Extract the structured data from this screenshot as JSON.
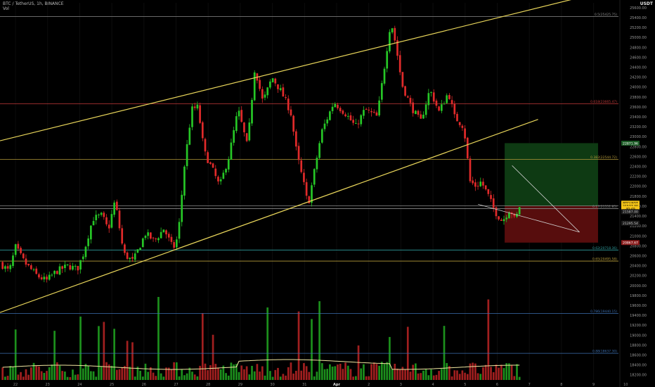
{
  "header": {
    "title": "BTC / TetherUS, 1h, BINANCE",
    "indicator": "Vol",
    "currency": "USDT"
  },
  "colors": {
    "background": "#000000",
    "up": "#26c626",
    "down": "#e02a2a",
    "volume_up": "#1f9e1f",
    "volume_down": "#b22222",
    "channel": "#e8d55a",
    "wedge": "#cfcfcf",
    "volume_ma": "#f0e6a0",
    "fib_red": "#c23a3a",
    "fib_gold": "#b59a3a",
    "fib_teal": "#2e9c9c",
    "fib_grey": "#8a8a8a",
    "fib_blue": "#3c6fb0",
    "target_zone": "#0f3d14",
    "stop_zone": "#5c0e0e",
    "price_tag": "#f4c518"
  },
  "chart_data": {
    "type": "candlestick",
    "y_axis": {
      "ticks": [
        "25600.00",
        "25400.00",
        "25200.00",
        "25000.00",
        "24800.00",
        "24600.00",
        "24400.00",
        "24200.00",
        "24000.00",
        "23800.00",
        "23600.00",
        "23400.00",
        "23200.00",
        "23000.00",
        "22800.00",
        "22600.00",
        "22400.00",
        "22200.00",
        "22000.00",
        "21800.00",
        "21600.00",
        "21400.00",
        "21200.00",
        "21000.00",
        "20800.00",
        "20600.00",
        "20400.00",
        "20200.00",
        "20000.00",
        "19800.00",
        "19600.00",
        "19400.00",
        "19200.00",
        "19000.00",
        "18800.00",
        "18600.00",
        "18400.00",
        "18200.00"
      ],
      "range": [
        18100,
        25700
      ]
    },
    "x_axis": {
      "ticks": [
        "22",
        "23",
        "24",
        "25",
        "26",
        "27",
        "28",
        "29",
        "30",
        "31",
        "Apr",
        "2",
        "3",
        "4",
        "5",
        "6",
        "7",
        "8",
        "9",
        "10"
      ]
    },
    "fib_levels": [
      {
        "price": 25425.75,
        "label": "0.5(25425.75)",
        "color": "#8a8a8a"
      },
      {
        "price": 23665.47,
        "label": "0.618(23665.47)",
        "color": "#c23a3a"
      },
      {
        "price": 22544.72,
        "label": "0.382(22544.72)",
        "color": "#b59a3a"
      },
      {
        "price": 21607.6,
        "label": "",
        "color": "#8a8a8a"
      },
      {
        "price": 21551.85,
        "label": "0.17(21551.85)",
        "color": "#8a8a8a"
      },
      {
        "price": 20718.36,
        "label": "0.62(20718.36)",
        "color": "#2e9c9c"
      },
      {
        "price": 20495.58,
        "label": "0.65(20495.58)",
        "color": "#b59a3a"
      },
      {
        "price": 19440.15,
        "label": "0.786(19440.15)",
        "color": "#3c6fb0"
      },
      {
        "price": 18637.3,
        "label": "0.88(18637.30)",
        "color": "#3c6fb0"
      }
    ],
    "channel": {
      "upper": [
        {
          "x": 0,
          "price": 22920
        },
        {
          "x": 1.0,
          "price": 26000
        }
      ],
      "lower": [
        {
          "x": 0,
          "price": 19460
        },
        {
          "x": 0.87,
          "price": 23350
        }
      ]
    },
    "wedge": {
      "upper": [
        {
          "x": 0.828,
          "price": 22420
        },
        {
          "x": 0.937,
          "price": 21080
        }
      ],
      "lower": [
        {
          "x": 0.773,
          "price": 21640
        },
        {
          "x": 0.937,
          "price": 21080
        }
      ]
    },
    "position": {
      "entry": 21607.6,
      "target": 22871.96,
      "stop": 20867.67,
      "from_x": 0.816,
      "to_x": 0.967
    },
    "price_labels": [
      {
        "text": "22871.96",
        "price": 22871.96,
        "bg": "#1b5a25",
        "fg": "#ffffff"
      },
      {
        "text": "BTCUSDT",
        "price": 21662,
        "bg": "#f4c518",
        "fg": "#000000"
      },
      {
        "text": "21577.00",
        "price": 21606,
        "bg": "#f4c518",
        "fg": "#000000"
      },
      {
        "text": "40:49",
        "price": 21550,
        "bg": "#f4c518",
        "fg": "#000000"
      },
      {
        "text": "21587.00",
        "price": 21490,
        "bg": "#1c1c1c",
        "fg": "#cccccc"
      },
      {
        "text": "21295.54",
        "price": 21260,
        "bg": "#1c1c1c",
        "fg": "#cccccc"
      },
      {
        "text": "20867.67",
        "price": 20867.67,
        "bg": "#8a1a1a",
        "fg": "#ffffff"
      }
    ],
    "price_path": [
      {
        "t": 0.0,
        "p": 20460
      },
      {
        "t": 0.015,
        "p": 20280
      },
      {
        "t": 0.025,
        "p": 20780
      },
      {
        "t": 0.04,
        "p": 20460
      },
      {
        "t": 0.06,
        "p": 20200
      },
      {
        "t": 0.075,
        "p": 20100
      },
      {
        "t": 0.09,
        "p": 20280
      },
      {
        "t": 0.11,
        "p": 20400
      },
      {
        "t": 0.125,
        "p": 20330
      },
      {
        "t": 0.135,
        "p": 20650
      },
      {
        "t": 0.15,
        "p": 21350
      },
      {
        "t": 0.165,
        "p": 21420
      },
      {
        "t": 0.175,
        "p": 21120
      },
      {
        "t": 0.186,
        "p": 21720
      },
      {
        "t": 0.2,
        "p": 20640
      },
      {
        "t": 0.215,
        "p": 20490
      },
      {
        "t": 0.235,
        "p": 21050
      },
      {
        "t": 0.25,
        "p": 20900
      },
      {
        "t": 0.265,
        "p": 21150
      },
      {
        "t": 0.28,
        "p": 20740
      },
      {
        "t": 0.288,
        "p": 21000
      },
      {
        "t": 0.298,
        "p": 22400
      },
      {
        "t": 0.31,
        "p": 23550
      },
      {
        "t": 0.32,
        "p": 23600
      },
      {
        "t": 0.33,
        "p": 22700
      },
      {
        "t": 0.345,
        "p": 22300
      },
      {
        "t": 0.355,
        "p": 22000
      },
      {
        "t": 0.37,
        "p": 22600
      },
      {
        "t": 0.385,
        "p": 23550
      },
      {
        "t": 0.4,
        "p": 22800
      },
      {
        "t": 0.412,
        "p": 24400
      },
      {
        "t": 0.425,
        "p": 23700
      },
      {
        "t": 0.44,
        "p": 24200
      },
      {
        "t": 0.455,
        "p": 23900
      },
      {
        "t": 0.47,
        "p": 23500
      },
      {
        "t": 0.48,
        "p": 22650
      },
      {
        "t": 0.493,
        "p": 21950
      },
      {
        "t": 0.498,
        "p": 21600
      },
      {
        "t": 0.506,
        "p": 22150
      },
      {
        "t": 0.52,
        "p": 23100
      },
      {
        "t": 0.54,
        "p": 23700
      },
      {
        "t": 0.56,
        "p": 23450
      },
      {
        "t": 0.575,
        "p": 23200
      },
      {
        "t": 0.59,
        "p": 23550
      },
      {
        "t": 0.61,
        "p": 23400
      },
      {
        "t": 0.622,
        "p": 24450
      },
      {
        "t": 0.632,
        "p": 25350
      },
      {
        "t": 0.64,
        "p": 24850
      },
      {
        "t": 0.65,
        "p": 24050
      },
      {
        "t": 0.665,
        "p": 23600
      },
      {
        "t": 0.68,
        "p": 23300
      },
      {
        "t": 0.695,
        "p": 23950
      },
      {
        "t": 0.71,
        "p": 23500
      },
      {
        "t": 0.725,
        "p": 23900
      },
      {
        "t": 0.735,
        "p": 23400
      },
      {
        "t": 0.75,
        "p": 23200
      },
      {
        "t": 0.76,
        "p": 22100
      },
      {
        "t": 0.77,
        "p": 22000
      },
      {
        "t": 0.778,
        "p": 22100
      },
      {
        "t": 0.79,
        "p": 21800
      },
      {
        "t": 0.8,
        "p": 21500
      },
      {
        "t": 0.812,
        "p": 21300
      },
      {
        "t": 0.825,
        "p": 21550
      },
      {
        "t": 0.833,
        "p": 21300
      },
      {
        "t": 0.84,
        "p": 21600
      }
    ]
  }
}
